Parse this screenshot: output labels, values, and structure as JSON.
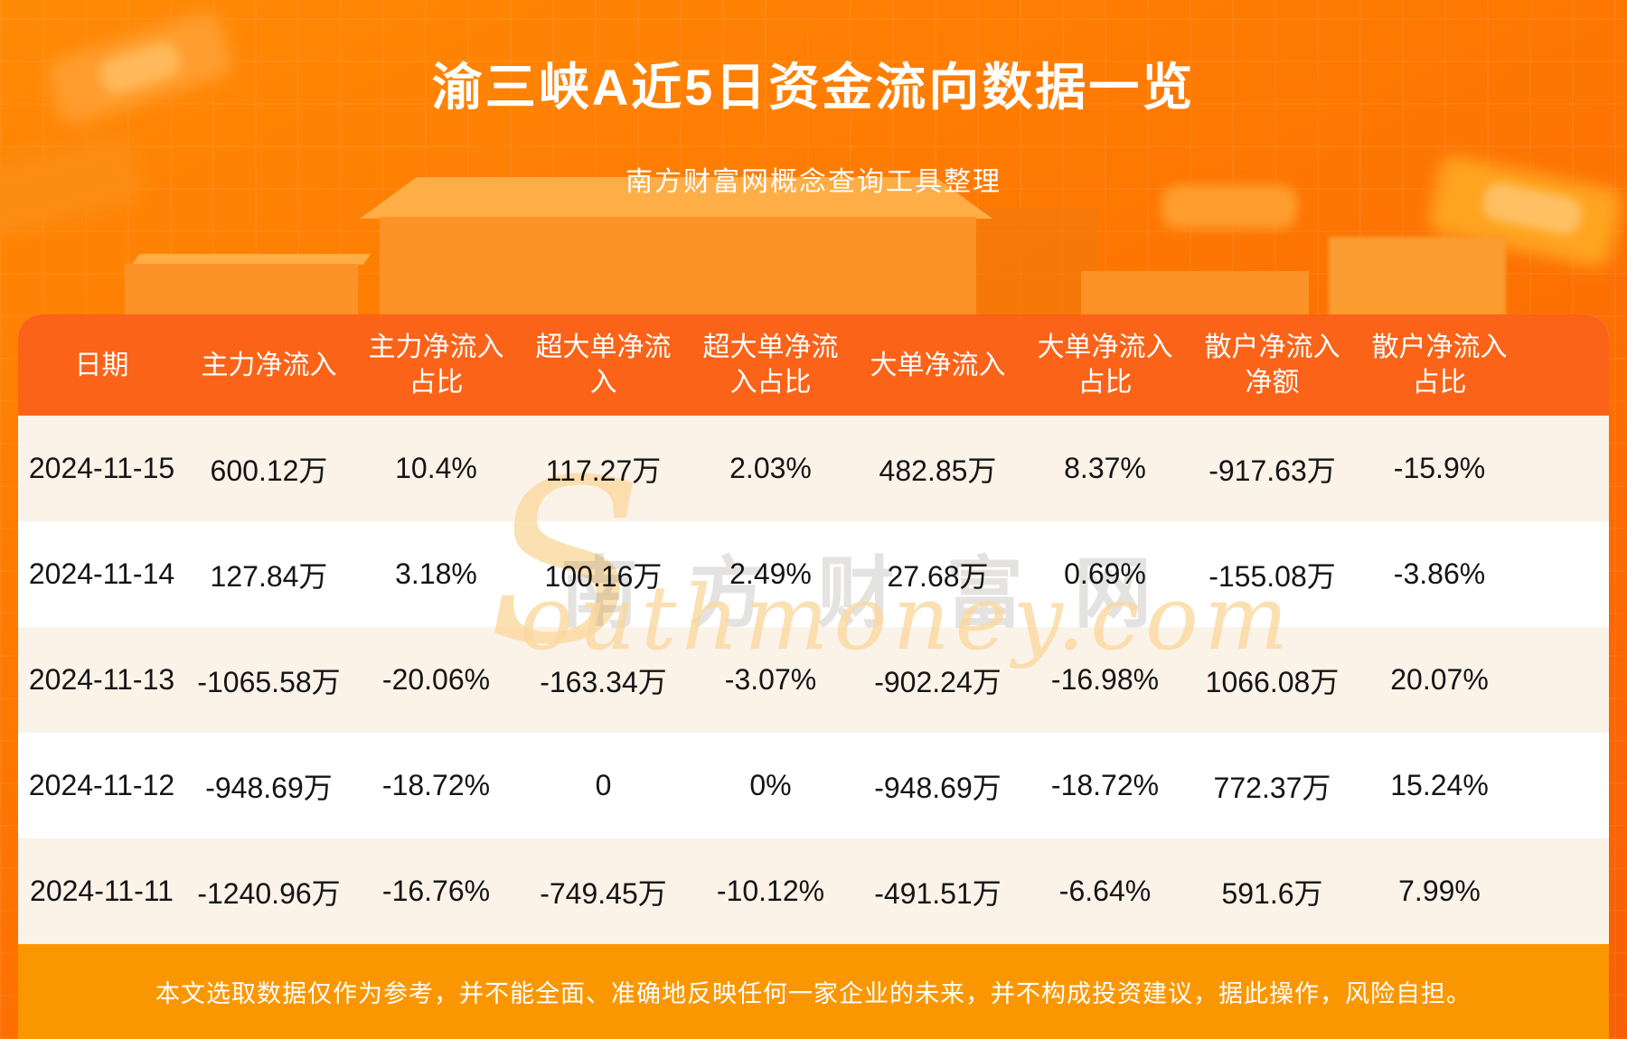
{
  "page": {
    "title": "渝三峡A近5日资金流向数据一览",
    "subtitle": "南方财富网概念查询工具整理",
    "disclaimer": "本文选取数据仅作为参考，并不能全面、准确地反映任何一家企业的未来，并不构成投资建议，据此操作，风险自担。",
    "watermark": {
      "cn": "南方财富网",
      "en_initial": "S",
      "en_rest": "outhmoney.com"
    }
  },
  "colors": {
    "background_orange": "#fd7302",
    "header_bg": "#fb6318",
    "row_stripe": "#fbf2e8",
    "row_plain": "#ffffff",
    "footer_bg": "#fa9700",
    "title_text": "#ffffff",
    "cell_text": "#141414"
  },
  "table": {
    "headers": [
      "日期",
      "主力净流入",
      "主力净流入\n占比",
      "超大单净流\n入",
      "超大单净流\n入占比",
      "大单净流入",
      "大单净流入\n占比",
      "散户净流入\n净额",
      "散户净流入\n占比"
    ],
    "rows": [
      {
        "cells": [
          "2024-11-15",
          "600.12万",
          "10.4%",
          "117.27万",
          "2.03%",
          "482.85万",
          "8.37%",
          "-917.63万",
          "-15.9%"
        ]
      },
      {
        "cells": [
          "2024-11-14",
          "127.84万",
          "3.18%",
          "100.16万",
          "2.49%",
          "27.68万",
          "0.69%",
          "-155.08万",
          "-3.86%"
        ]
      },
      {
        "cells": [
          "2024-11-13",
          "-1065.58万",
          "-20.06%",
          "-163.34万",
          "-3.07%",
          "-902.24万",
          "-16.98%",
          "1066.08万",
          "20.07%"
        ]
      },
      {
        "cells": [
          "2024-11-12",
          "-948.69万",
          "-18.72%",
          "0",
          "0%",
          "-948.69万",
          "-18.72%",
          "772.37万",
          "15.24%"
        ]
      },
      {
        "cells": [
          "2024-11-11",
          "-1240.96万",
          "-16.76%",
          "-749.45万",
          "-10.12%",
          "-491.51万",
          "-6.64%",
          "591.6万",
          "7.99%"
        ]
      }
    ]
  },
  "chart_data": {
    "type": "table",
    "title": "渝三峡A近5日资金流向数据一览",
    "subtitle": "南方财富网概念查询工具整理",
    "columns": [
      "日期",
      "主力净流入",
      "主力净流入占比",
      "超大单净流入",
      "超大单净流入占比",
      "大单净流入",
      "大单净流入占比",
      "散户净流入净额",
      "散户净流入占比"
    ],
    "rows": [
      [
        "2024-11-15",
        "600.12万",
        "10.4%",
        "117.27万",
        "2.03%",
        "482.85万",
        "8.37%",
        "-917.63万",
        "-15.9%"
      ],
      [
        "2024-11-14",
        "127.84万",
        "3.18%",
        "100.16万",
        "2.49%",
        "27.68万",
        "0.69%",
        "-155.08万",
        "-3.86%"
      ],
      [
        "2024-11-13",
        "-1065.58万",
        "-20.06%",
        "-163.34万",
        "-3.07%",
        "-902.24万",
        "-16.98%",
        "1066.08万",
        "20.07%"
      ],
      [
        "2024-11-12",
        "-948.69万",
        "-18.72%",
        "0",
        "0%",
        "-948.69万",
        "-18.72%",
        "772.37万",
        "15.24%"
      ],
      [
        "2024-11-11",
        "-1240.96万",
        "-16.76%",
        "-749.45万",
        "-10.12%",
        "-491.51万",
        "-6.64%",
        "591.6万",
        "7.99%"
      ]
    ]
  }
}
